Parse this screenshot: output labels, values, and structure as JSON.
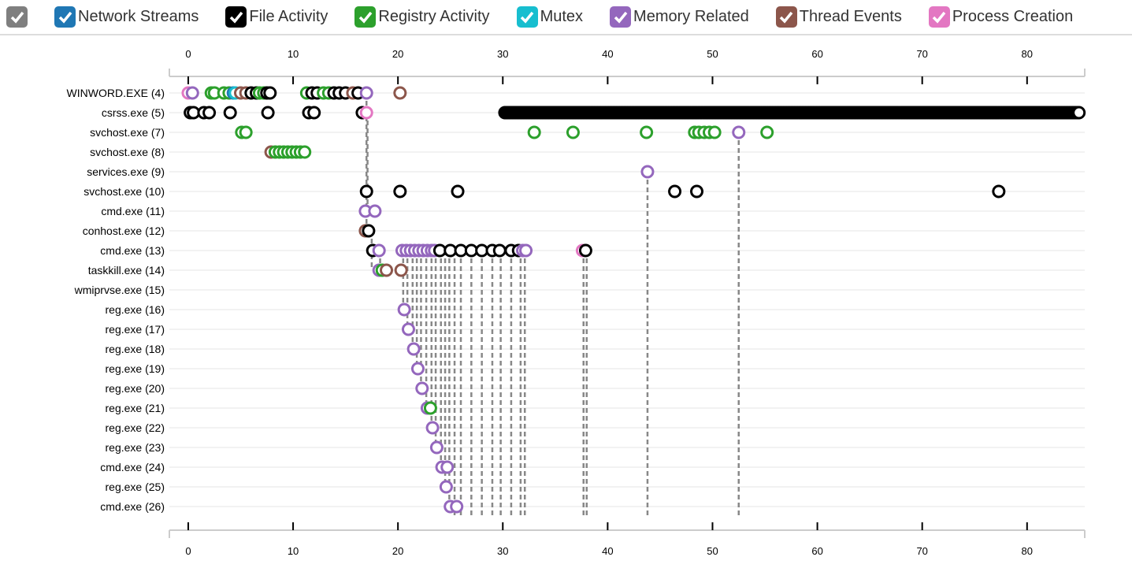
{
  "legend": [
    {
      "label": "",
      "color": "#7f7f7f",
      "name": "all"
    },
    {
      "label": "Network Streams",
      "color": "#1f77b4",
      "name": "network"
    },
    {
      "label": "File Activity",
      "color": "#000000",
      "name": "file"
    },
    {
      "label": "Registry Activity",
      "color": "#2ca02c",
      "name": "registry"
    },
    {
      "label": "Mutex",
      "color": "#17becf",
      "name": "mutex"
    },
    {
      "label": "Memory Related",
      "color": "#9467bd",
      "name": "memory"
    },
    {
      "label": "Thread Events",
      "color": "#8c564b",
      "name": "thread"
    },
    {
      "label": "Process Creation",
      "color": "#e377c2",
      "name": "process"
    }
  ],
  "chart_data": {
    "type": "scatter",
    "xlim": [
      -1.8,
      85.5
    ],
    "xticks": [
      0,
      10,
      20,
      30,
      40,
      50,
      60,
      70,
      80
    ],
    "rows": [
      "WINWORD.EXE (4)",
      "csrss.exe (5)",
      "svchost.exe (7)",
      "svchost.exe (8)",
      "services.exe (9)",
      "svchost.exe (10)",
      "cmd.exe (11)",
      "conhost.exe (12)",
      "cmd.exe (13)",
      "taskkill.exe (14)",
      "wmiprvse.exe (15)",
      "reg.exe (16)",
      "reg.exe (17)",
      "reg.exe (18)",
      "reg.exe (19)",
      "reg.exe (20)",
      "reg.exe (21)",
      "reg.exe (22)",
      "reg.exe (23)",
      "cmd.exe (24)",
      "reg.exe (25)",
      "cmd.exe (26)"
    ],
    "points": [
      [
        0,
        0,
        "process"
      ],
      [
        0.4,
        0,
        "memory"
      ],
      [
        2.2,
        0,
        "registry"
      ],
      [
        2.5,
        0,
        "registry"
      ],
      [
        3.4,
        0,
        "registry"
      ],
      [
        3.9,
        0,
        "registry"
      ],
      [
        4.3,
        0,
        "network"
      ],
      [
        4.5,
        0,
        "mutex"
      ],
      [
        5.0,
        0,
        "thread"
      ],
      [
        5.5,
        0,
        "thread"
      ],
      [
        6.0,
        0,
        "file"
      ],
      [
        6.5,
        0,
        "file"
      ],
      [
        6.8,
        0,
        "registry"
      ],
      [
        7.2,
        0,
        "registry"
      ],
      [
        7.5,
        0,
        "file"
      ],
      [
        7.8,
        0,
        "file"
      ],
      [
        11.3,
        0,
        "registry"
      ],
      [
        11.8,
        0,
        "file"
      ],
      [
        12.3,
        0,
        "file"
      ],
      [
        12.9,
        0,
        "registry"
      ],
      [
        13.4,
        0,
        "registry"
      ],
      [
        13.9,
        0,
        "file"
      ],
      [
        14.4,
        0,
        "file"
      ],
      [
        15.0,
        0,
        "file"
      ],
      [
        15.7,
        0,
        "thread"
      ],
      [
        16.2,
        0,
        "file"
      ],
      [
        17.0,
        0,
        "memory"
      ],
      [
        20.2,
        0,
        "thread"
      ],
      [
        0.2,
        1,
        "file"
      ],
      [
        0.5,
        1,
        "file"
      ],
      [
        1.5,
        1,
        "file"
      ],
      [
        2.0,
        1,
        "file"
      ],
      [
        4.0,
        1,
        "file"
      ],
      [
        7.6,
        1,
        "file"
      ],
      [
        11.5,
        1,
        "file"
      ],
      [
        12.0,
        1,
        "file"
      ],
      [
        16.6,
        1,
        "file"
      ],
      [
        17.0,
        1,
        "process"
      ],
      [
        5.1,
        2,
        "registry"
      ],
      [
        5.5,
        2,
        "registry"
      ],
      [
        33.0,
        2,
        "registry"
      ],
      [
        36.7,
        2,
        "registry"
      ],
      [
        43.7,
        2,
        "registry"
      ],
      [
        48.3,
        2,
        "registry"
      ],
      [
        48.7,
        2,
        "registry"
      ],
      [
        49.2,
        2,
        "registry"
      ],
      [
        49.7,
        2,
        "registry"
      ],
      [
        50.2,
        2,
        "registry"
      ],
      [
        52.5,
        2,
        "memory"
      ],
      [
        55.2,
        2,
        "registry"
      ],
      [
        7.9,
        3,
        "thread"
      ],
      [
        8.3,
        3,
        "registry"
      ],
      [
        8.7,
        3,
        "registry"
      ],
      [
        9.1,
        3,
        "registry"
      ],
      [
        9.5,
        3,
        "registry"
      ],
      [
        9.9,
        3,
        "registry"
      ],
      [
        10.3,
        3,
        "registry"
      ],
      [
        10.7,
        3,
        "registry"
      ],
      [
        11.1,
        3,
        "registry"
      ],
      [
        43.8,
        4,
        "memory"
      ],
      [
        17.0,
        5,
        "file"
      ],
      [
        20.2,
        5,
        "file"
      ],
      [
        25.7,
        5,
        "file"
      ],
      [
        46.4,
        5,
        "file"
      ],
      [
        48.5,
        5,
        "file"
      ],
      [
        77.3,
        5,
        "file"
      ],
      [
        16.9,
        6,
        "memory"
      ],
      [
        17.8,
        6,
        "memory"
      ],
      [
        16.9,
        7,
        "thread"
      ],
      [
        17.2,
        7,
        "file"
      ],
      [
        17.6,
        8,
        "file"
      ],
      [
        18.2,
        8,
        "memory"
      ],
      [
        20.4,
        8,
        "memory"
      ],
      [
        20.8,
        8,
        "memory"
      ],
      [
        21.2,
        8,
        "memory"
      ],
      [
        21.6,
        8,
        "memory"
      ],
      [
        22.0,
        8,
        "memory"
      ],
      [
        22.4,
        8,
        "memory"
      ],
      [
        22.8,
        8,
        "memory"
      ],
      [
        23.2,
        8,
        "memory"
      ],
      [
        23.5,
        8,
        "memory"
      ],
      [
        24.0,
        8,
        "file"
      ],
      [
        25.0,
        8,
        "file"
      ],
      [
        26.0,
        8,
        "file"
      ],
      [
        27.0,
        8,
        "file"
      ],
      [
        28.0,
        8,
        "file"
      ],
      [
        29.0,
        8,
        "file"
      ],
      [
        29.7,
        8,
        "file"
      ],
      [
        30.8,
        8,
        "file"
      ],
      [
        31.5,
        8,
        "file"
      ],
      [
        31.9,
        8,
        "memory"
      ],
      [
        32.2,
        8,
        "memory"
      ],
      [
        37.6,
        8,
        "process"
      ],
      [
        37.9,
        8,
        "file"
      ],
      [
        18.2,
        9,
        "memory"
      ],
      [
        18.5,
        9,
        "registry"
      ],
      [
        18.9,
        9,
        "thread"
      ],
      [
        20.3,
        9,
        "thread"
      ],
      [
        20.6,
        11,
        "memory"
      ],
      [
        21.0,
        12,
        "memory"
      ],
      [
        21.5,
        13,
        "memory"
      ],
      [
        21.9,
        14,
        "memory"
      ],
      [
        22.3,
        15,
        "memory"
      ],
      [
        22.8,
        16,
        "memory"
      ],
      [
        23.1,
        16,
        "registry"
      ],
      [
        23.3,
        17,
        "memory"
      ],
      [
        23.7,
        18,
        "memory"
      ],
      [
        24.2,
        19,
        "memory"
      ],
      [
        24.7,
        19,
        "memory"
      ],
      [
        24.6,
        20,
        "memory"
      ],
      [
        25.0,
        21,
        "memory"
      ],
      [
        25.6,
        21,
        "memory"
      ]
    ],
    "dense_series": {
      "row": 1,
      "category": "file",
      "from": 30.2,
      "to": 86,
      "step": 0.15
    },
    "links": [
      [
        17.0,
        0,
        7
      ],
      [
        17.1,
        1,
        6
      ],
      [
        17.5,
        7,
        9
      ],
      [
        18.3,
        8,
        9
      ],
      [
        20.5,
        8,
        11
      ],
      [
        20.9,
        8,
        12
      ],
      [
        21.4,
        8,
        13
      ],
      [
        21.8,
        8,
        14
      ],
      [
        22.2,
        8,
        15
      ],
      [
        22.7,
        8,
        16
      ],
      [
        23.2,
        8,
        17
      ],
      [
        23.6,
        8,
        18
      ],
      [
        24.1,
        8,
        19
      ],
      [
        24.5,
        8,
        20
      ],
      [
        24.9,
        8,
        21
      ],
      [
        25.4,
        8,
        21.6
      ],
      [
        26.0,
        8,
        21.6
      ],
      [
        27.0,
        8,
        21.6
      ],
      [
        28.0,
        8,
        21.6
      ],
      [
        29.0,
        8,
        21.6
      ],
      [
        29.8,
        8,
        21.6
      ],
      [
        30.8,
        8,
        21.6
      ],
      [
        31.7,
        8,
        21.6
      ],
      [
        32.1,
        8,
        21.6
      ],
      [
        37.7,
        8,
        21.6
      ],
      [
        38.0,
        8,
        21.6
      ],
      [
        43.8,
        4,
        21.6
      ],
      [
        52.5,
        2,
        21.6
      ]
    ]
  }
}
